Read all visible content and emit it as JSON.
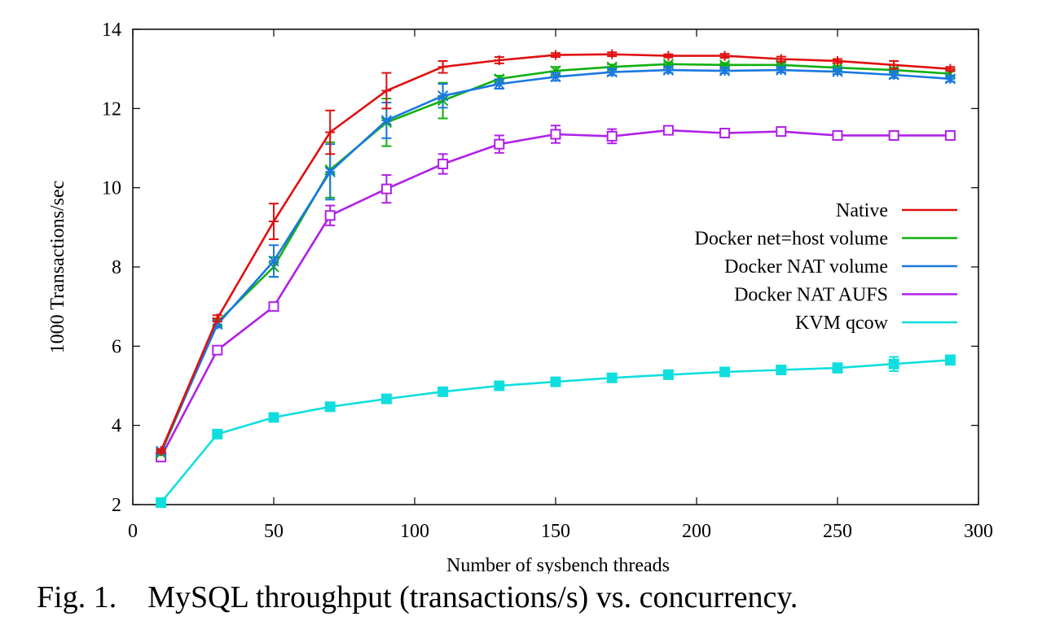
{
  "chart_data": {
    "type": "line",
    "title": "",
    "xlabel": "Number of sysbench threads",
    "ylabel": "1000 Transactions/sec",
    "xlim": [
      0,
      300
    ],
    "ylim": [
      2,
      14
    ],
    "xticks": [
      0,
      50,
      100,
      150,
      200,
      250,
      300
    ],
    "yticks": [
      2,
      4,
      6,
      8,
      10,
      12,
      14
    ],
    "grid": false,
    "legend_position": "right",
    "x": [
      10,
      30,
      50,
      70,
      90,
      110,
      130,
      150,
      170,
      190,
      210,
      230,
      250,
      270,
      290
    ],
    "series": [
      {
        "name": "Native",
        "color": "#e01010",
        "marker": "plus",
        "values": [
          3.35,
          6.7,
          9.15,
          11.4,
          12.45,
          13.05,
          13.22,
          13.35,
          13.37,
          13.33,
          13.33,
          13.25,
          13.2,
          13.1,
          13.0
        ],
        "errors": [
          0.05,
          0.08,
          0.45,
          0.55,
          0.45,
          0.15,
          0.08,
          0.05,
          0.05,
          0.04,
          0.05,
          0.06,
          0.05,
          0.1,
          0.05
        ]
      },
      {
        "name": "Docker net=host volume",
        "color": "#10b010",
        "marker": "x",
        "values": [
          3.3,
          6.6,
          8.0,
          10.45,
          11.65,
          12.2,
          12.75,
          12.95,
          13.05,
          13.12,
          13.1,
          13.1,
          13.03,
          12.97,
          12.88
        ],
        "errors": [
          0.05,
          0.08,
          0.25,
          0.7,
          0.6,
          0.45,
          0.08,
          0.1,
          0.06,
          0.05,
          0.05,
          0.05,
          0.05,
          0.06,
          0.06
        ]
      },
      {
        "name": "Docker NAT volume",
        "color": "#1a78e0",
        "marker": "star",
        "values": [
          3.35,
          6.55,
          8.15,
          10.4,
          11.7,
          12.32,
          12.62,
          12.8,
          12.92,
          12.97,
          12.95,
          12.97,
          12.93,
          12.85,
          12.75
        ],
        "errors": [
          0.05,
          0.08,
          0.4,
          0.7,
          0.45,
          0.3,
          0.12,
          0.1,
          0.08,
          0.07,
          0.06,
          0.06,
          0.06,
          0.08,
          0.07
        ]
      },
      {
        "name": "Docker NAT AUFS",
        "color": "#b020e8",
        "marker": "square-open",
        "values": [
          3.2,
          5.9,
          7.0,
          9.3,
          9.97,
          10.6,
          11.1,
          11.35,
          11.3,
          11.45,
          11.38,
          11.42,
          11.32,
          11.32,
          11.32
        ],
        "errors": [
          0.05,
          0.06,
          0.08,
          0.25,
          0.35,
          0.25,
          0.22,
          0.22,
          0.18,
          0.08,
          0.1,
          0.08,
          0.08,
          0.07,
          0.07
        ]
      },
      {
        "name": "KVM qcow",
        "color": "#10dede",
        "marker": "square-filled",
        "values": [
          2.05,
          3.78,
          4.2,
          4.47,
          4.67,
          4.85,
          5.0,
          5.1,
          5.2,
          5.28,
          5.35,
          5.4,
          5.45,
          5.55,
          5.65
        ],
        "errors": [
          0.03,
          0.05,
          0.05,
          0.05,
          0.05,
          0.05,
          0.05,
          0.05,
          0.06,
          0.06,
          0.1,
          0.08,
          0.12,
          0.18,
          0.12
        ]
      }
    ]
  },
  "caption": {
    "label": "Fig. 1.",
    "text": "MySQL throughput (transactions/s) vs. concurrency."
  }
}
